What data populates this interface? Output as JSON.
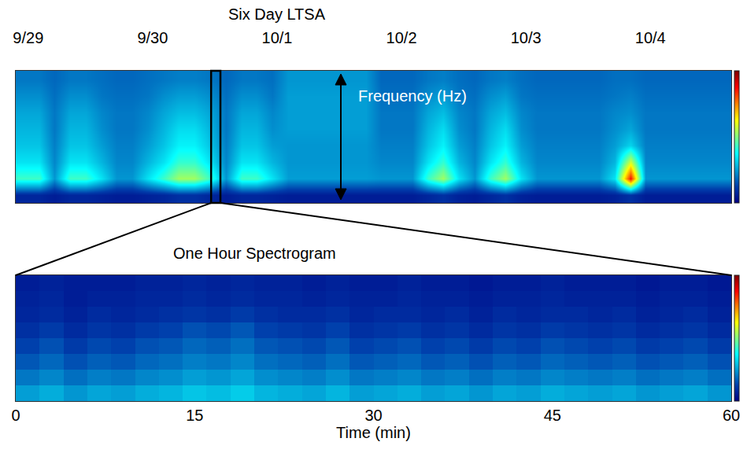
{
  "chart_data": [
    {
      "type": "heatmap",
      "title": "Six Day LTSA",
      "color": "Jet",
      "tick_labels": "x",
      "annotations": [
        "Frequency (Hz)"
      ],
      "xlim": [
        0,
        5.75
      ],
      "xticks": [
        {
          "value": 0.1,
          "label": "9/29"
        },
        {
          "value": 1.1,
          "label": "9/30"
        },
        {
          "value": 2.1,
          "label": "10/1"
        },
        {
          "value": 3.1,
          "label": "10/2"
        },
        {
          "value": 4.1,
          "label": "10/3"
        },
        {
          "value": 5.1,
          "label": "10/4"
        }
      ],
      "ylim": [
        -0.5,
        7.5
      ],
      "zlim": [
        0,
        10
      ],
      "zoom_box": [
        1.57,
        1.645
      ],
      "x": [
        0.0625,
        0.1875,
        0.3125,
        0.4375,
        0.5625,
        0.6875,
        0.8125,
        0.9375,
        1.0625,
        1.1875,
        1.3125,
        1.4375,
        1.5625,
        1.6875,
        1.8125,
        1.9375,
        2.0625,
        2.1875,
        2.3125,
        2.4375,
        2.5625,
        2.6875,
        2.8125,
        2.9375,
        3.0625,
        3.1875,
        3.3125,
        3.4375,
        3.5625,
        3.6875,
        3.8125,
        3.9375,
        4.0625,
        4.1875,
        4.3125,
        4.4375,
        4.5625,
        4.6875,
        4.8125,
        4.9375,
        5.0625,
        5.1875,
        5.3125,
        5.4375,
        5.5625,
        5.6875
      ],
      "y": [
        0,
        1,
        2,
        3,
        4,
        5,
        6,
        7
      ],
      "z": [
        [
          0.8,
          0.8,
          0.6,
          0.8,
          0.8,
          0.7,
          0.6,
          0.6,
          0.7,
          0.8,
          1.0,
          1.0,
          0.8,
          0.6,
          0.8,
          0.8,
          0.7,
          0.6,
          0.6,
          0.6,
          0.6,
          0.6,
          0.6,
          0.6,
          0.6,
          0.6,
          0.8,
          1.0,
          0.7,
          0.6,
          0.8,
          1.0,
          0.7,
          0.6,
          0.6,
          0.6,
          0.6,
          0.6,
          0.7,
          1.0,
          0.6,
          0.6,
          0.6,
          0.6,
          0.6,
          0.6
        ],
        [
          4.3,
          4.3,
          2.4,
          4.3,
          4.3,
          3.4,
          2.4,
          2.4,
          3.4,
          4.3,
          5.3,
          5.3,
          4.3,
          2.4,
          4.3,
          4.3,
          3.4,
          2.5,
          2.5,
          2.5,
          2.5,
          2.5,
          2.5,
          2.4,
          2.4,
          2.4,
          4.3,
          5.3,
          3.4,
          2.4,
          4.3,
          5.3,
          3.4,
          2.4,
          2.4,
          2.4,
          2.4,
          2.4,
          3.4,
          8.6,
          2.4,
          2.4,
          2.4,
          2.4,
          2.4,
          2.4
        ],
        [
          3.4,
          3.4,
          2.2,
          3.4,
          3.4,
          2.8,
          2.2,
          2.2,
          2.8,
          3.4,
          4.2,
          4.2,
          3.4,
          2.2,
          3.4,
          3.4,
          2.8,
          2.4,
          2.4,
          2.4,
          2.4,
          2.4,
          2.4,
          2.2,
          2.2,
          2.2,
          3.4,
          4.2,
          2.8,
          2.2,
          3.4,
          4.2,
          2.8,
          2.2,
          2.2,
          2.2,
          2.2,
          2.2,
          2.8,
          5.8,
          2.2,
          2.2,
          2.2,
          2.2,
          2.2,
          2.2
        ],
        [
          3.0,
          3.0,
          2.1,
          3.0,
          3.0,
          2.5,
          2.1,
          2.1,
          2.5,
          3.0,
          3.6,
          3.6,
          3.0,
          2.1,
          3.0,
          3.0,
          2.5,
          2.4,
          2.4,
          2.4,
          2.4,
          2.4,
          2.4,
          2.1,
          2.1,
          2.1,
          3.0,
          3.6,
          2.5,
          2.1,
          3.0,
          3.6,
          2.5,
          2.1,
          2.1,
          2.1,
          2.1,
          2.1,
          2.5,
          3.2,
          2.1,
          2.1,
          2.1,
          2.1,
          2.1,
          2.1
        ],
        [
          2.8,
          2.8,
          2.0,
          2.8,
          2.8,
          2.3,
          2.0,
          2.0,
          2.3,
          2.8,
          3.3,
          3.3,
          2.8,
          2.0,
          2.8,
          2.8,
          2.3,
          2.5,
          2.5,
          2.5,
          2.5,
          2.5,
          2.5,
          2.0,
          2.0,
          2.0,
          2.8,
          3.3,
          2.3,
          2.0,
          2.8,
          3.3,
          2.3,
          2.0,
          2.0,
          2.0,
          2.0,
          2.0,
          2.3,
          2.6,
          2.0,
          2.0,
          2.0,
          2.0,
          2.0,
          2.0
        ],
        [
          2.6,
          2.6,
          2.0,
          2.6,
          2.6,
          2.2,
          2.0,
          2.0,
          2.2,
          2.6,
          2.9,
          2.9,
          2.6,
          2.0,
          2.6,
          2.6,
          2.2,
          2.5,
          2.5,
          2.5,
          2.5,
          2.5,
          2.5,
          2.0,
          2.0,
          2.0,
          2.6,
          2.9,
          2.2,
          2.0,
          2.6,
          2.9,
          2.2,
          2.0,
          2.0,
          2.0,
          2.0,
          2.0,
          2.2,
          2.3,
          2.0,
          2.0,
          2.0,
          2.0,
          2.0,
          2.0
        ],
        [
          2.3,
          2.3,
          1.9,
          2.3,
          2.3,
          2.0,
          1.9,
          1.9,
          2.0,
          2.3,
          2.5,
          2.5,
          2.3,
          1.9,
          2.3,
          2.3,
          2.0,
          2.5,
          2.5,
          2.5,
          2.5,
          2.5,
          2.5,
          1.9,
          1.9,
          1.9,
          2.3,
          2.5,
          2.0,
          1.9,
          2.3,
          2.5,
          2.0,
          1.9,
          1.9,
          1.9,
          1.9,
          1.9,
          2.0,
          2.1,
          1.9,
          1.9,
          1.9,
          1.9,
          1.9,
          1.9
        ],
        [
          2.0,
          2.0,
          1.8,
          2.0,
          2.0,
          1.9,
          1.8,
          1.8,
          1.9,
          2.0,
          2.1,
          2.1,
          2.0,
          1.8,
          2.0,
          2.0,
          1.9,
          2.4,
          2.4,
          2.4,
          2.4,
          2.4,
          2.4,
          1.8,
          1.8,
          1.8,
          2.0,
          2.1,
          1.9,
          1.8,
          2.0,
          2.1,
          1.9,
          1.8,
          1.8,
          1.8,
          1.8,
          1.8,
          1.9,
          1.9,
          1.8,
          1.8,
          1.8,
          1.8,
          1.8,
          1.8
        ]
      ]
    },
    {
      "type": "heatmap",
      "title": "One Hour Spectrogram",
      "x_label": "Time (min)",
      "color": "Jet",
      "tick_labels": "x",
      "xlim": [
        0,
        60
      ],
      "xticks": [
        0,
        15,
        30,
        45,
        60
      ],
      "ylim": [
        -0.5,
        7.5
      ],
      "zlim": [
        0,
        10
      ],
      "x": [
        1,
        3,
        5,
        7,
        9,
        11,
        13,
        15,
        17,
        19,
        21,
        23,
        25,
        27,
        29,
        31,
        33,
        35,
        37,
        39,
        41,
        43,
        45,
        47,
        49,
        51,
        53,
        55,
        57,
        59
      ],
      "y": [
        0,
        1,
        2,
        3,
        4,
        5,
        6,
        7
      ],
      "z": [
        [
          2.5,
          2.7,
          2.4,
          2.6,
          2.5,
          2.7,
          2.8,
          3.0,
          2.9,
          3.1,
          2.8,
          2.7,
          2.6,
          2.8,
          2.5,
          2.6,
          2.7,
          2.5,
          2.6,
          2.4,
          2.6,
          2.5,
          2.7,
          2.6,
          2.5,
          2.6,
          2.4,
          2.5,
          2.6,
          2.4
        ],
        [
          2.0,
          2.2,
          1.9,
          2.1,
          2.0,
          2.2,
          2.3,
          2.5,
          2.4,
          2.6,
          2.3,
          2.2,
          2.1,
          2.3,
          2.0,
          2.1,
          2.2,
          2.0,
          2.1,
          1.9,
          2.1,
          2.0,
          2.2,
          2.1,
          2.0,
          2.1,
          1.9,
          2.0,
          2.1,
          1.9
        ],
        [
          1.6,
          1.8,
          1.5,
          1.7,
          1.6,
          1.8,
          1.9,
          2.1,
          2.0,
          2.2,
          1.9,
          1.8,
          1.7,
          1.9,
          1.6,
          1.7,
          1.8,
          1.6,
          1.7,
          1.5,
          1.7,
          1.6,
          1.8,
          1.7,
          1.6,
          1.7,
          1.5,
          1.6,
          1.7,
          1.5
        ],
        [
          1.3,
          1.5,
          1.2,
          1.4,
          1.3,
          1.5,
          1.6,
          1.8,
          1.7,
          1.9,
          1.6,
          1.5,
          1.4,
          1.6,
          1.3,
          1.4,
          1.5,
          1.3,
          1.4,
          1.2,
          1.4,
          1.3,
          1.5,
          1.4,
          1.3,
          1.4,
          1.2,
          1.3,
          1.4,
          1.2
        ],
        [
          1.0,
          1.2,
          0.9,
          1.1,
          1.0,
          1.2,
          1.3,
          1.5,
          1.4,
          1.6,
          1.3,
          1.2,
          1.1,
          1.3,
          1.0,
          1.1,
          1.2,
          1.0,
          1.1,
          0.9,
          1.1,
          1.0,
          1.2,
          1.1,
          1.0,
          1.1,
          0.9,
          1.0,
          1.1,
          0.9
        ],
        [
          0.8,
          0.9,
          0.7,
          0.9,
          0.8,
          0.9,
          1.0,
          1.1,
          1.0,
          1.2,
          1.0,
          0.9,
          0.9,
          1.0,
          0.8,
          0.9,
          0.9,
          0.8,
          0.9,
          0.7,
          0.9,
          0.8,
          0.9,
          0.9,
          0.8,
          0.9,
          0.7,
          0.8,
          0.9,
          0.7
        ],
        [
          0.7,
          0.8,
          0.6,
          0.7,
          0.7,
          0.8,
          0.8,
          0.9,
          0.8,
          0.9,
          0.8,
          0.8,
          0.7,
          0.8,
          0.7,
          0.7,
          0.8,
          0.7,
          0.7,
          0.6,
          0.7,
          0.7,
          0.8,
          0.7,
          0.7,
          0.7,
          0.6,
          0.7,
          0.7,
          0.6
        ],
        [
          0.6,
          0.7,
          0.6,
          0.6,
          0.6,
          0.7,
          0.7,
          0.8,
          0.7,
          0.8,
          0.7,
          0.7,
          0.6,
          0.7,
          0.6,
          0.6,
          0.7,
          0.6,
          0.6,
          0.5,
          0.6,
          0.6,
          0.7,
          0.6,
          0.6,
          0.6,
          0.5,
          0.6,
          0.6,
          0.5
        ]
      ]
    }
  ]
}
